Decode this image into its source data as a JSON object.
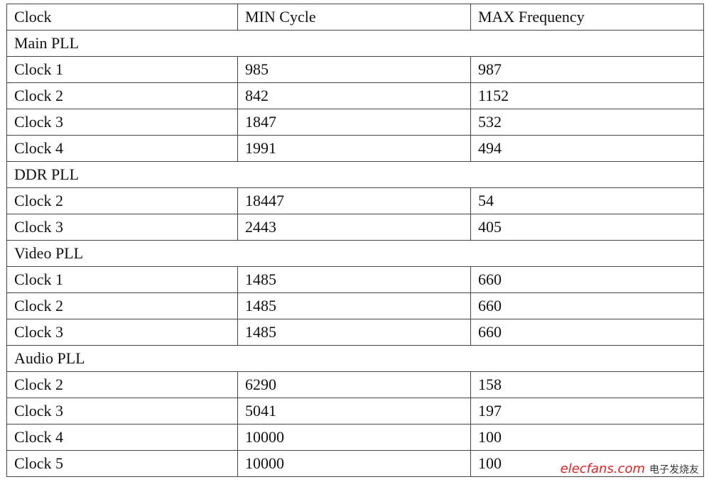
{
  "table": {
    "header": [
      "Clock",
      "MIN Cycle",
      "MAX Frequency"
    ],
    "groups": [
      {
        "name": "Main PLL",
        "rows": [
          [
            "Clock 1",
            "985",
            "987"
          ],
          [
            "Clock 2",
            "842",
            "1152"
          ],
          [
            "Clock 3",
            "1847",
            "532"
          ],
          [
            "Clock 4",
            "1991",
            "494"
          ]
        ]
      },
      {
        "name": "DDR PLL",
        "rows": [
          [
            "Clock 2",
            "18447",
            "54"
          ],
          [
            "Clock 3",
            "2443",
            "405"
          ]
        ]
      },
      {
        "name": "Video PLL",
        "rows": [
          [
            "Clock 1",
            "1485",
            "660"
          ],
          [
            "Clock 2",
            "1485",
            "660"
          ],
          [
            "Clock 3",
            "1485",
            "660"
          ]
        ]
      },
      {
        "name": "Audio PLL",
        "rows": [
          [
            "Clock 2",
            "6290",
            "158"
          ],
          [
            "Clock 3",
            "5041",
            "197"
          ],
          [
            "Clock 4",
            "10000",
            "100"
          ],
          [
            "Clock 5",
            "10000",
            "100"
          ]
        ]
      }
    ]
  },
  "watermark": {
    "site": "elecfans.com",
    "brand": "电子发烧友"
  }
}
